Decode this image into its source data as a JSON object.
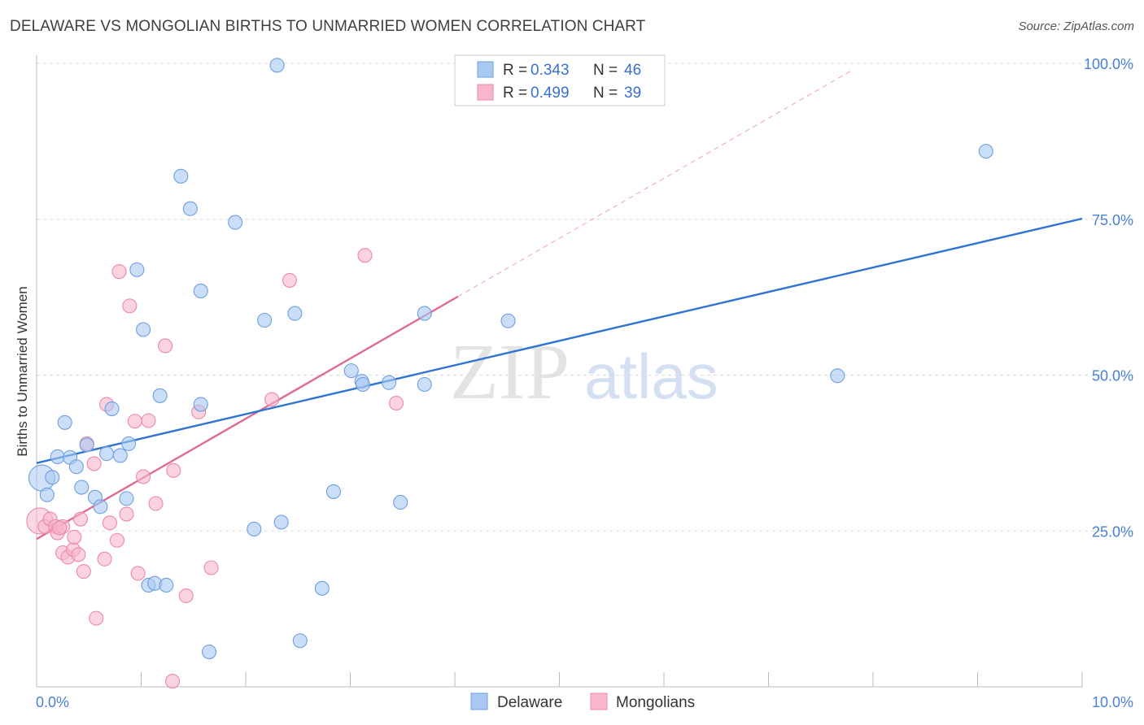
{
  "title": "DELAWARE VS MONGOLIAN BIRTHS TO UNMARRIED WOMEN CORRELATION CHART",
  "source": "Source: ZipAtlas.com",
  "watermark": {
    "zip": "ZIP",
    "atlas": "atlas"
  },
  "colors": {
    "delaware_fill": "#a9c8f2",
    "delaware_stroke": "#6f9fdf",
    "delaware_line": "#2f74d0",
    "mongolian_fill": "#f7b6c9",
    "mongolian_stroke": "#ea8aa8",
    "mongolian_line": "#e06a92",
    "grid": "#dddddd",
    "tick_text": "#4a7fd6"
  },
  "legend_top": {
    "rows": [
      {
        "series": "Delaware",
        "r_label": "R = ",
        "r_value": "0.343",
        "n_label": "N = ",
        "n_value": "46"
      },
      {
        "series": "Mongolians",
        "r_label": "R = ",
        "r_value": "0.499",
        "n_label": "N = ",
        "n_value": "39"
      }
    ]
  },
  "chart_data": {
    "type": "scatter",
    "title": "DELAWARE VS MONGOLIAN BIRTHS TO UNMARRIED WOMEN CORRELATION CHART",
    "xlabel": "",
    "ylabel": "Births to Unmarried Women",
    "xlim": [
      0,
      10
    ],
    "ylim": [
      0,
      100
    ],
    "x_tick_labels": [
      "0.0%",
      "10.0%"
    ],
    "y_tick_labels": [
      {
        "value": 100,
        "label": "100.0%"
      },
      {
        "value": 75,
        "label": "75.0%"
      },
      {
        "value": 50,
        "label": "50.0%"
      },
      {
        "value": 25,
        "label": "25.0%"
      }
    ],
    "grid": true,
    "legend": "bottom-center",
    "series": [
      {
        "name": "Delaware",
        "r": 0.343,
        "n": 46,
        "trend": {
          "x": [
            0,
            10
          ],
          "y": [
            35.9,
            75.1
          ]
        },
        "points": [
          {
            "x": 0.05,
            "y": 33.5,
            "big": true
          },
          {
            "x": 0.1,
            "y": 30.8
          },
          {
            "x": 0.15,
            "y": 33.6
          },
          {
            "x": 0.2,
            "y": 36.9
          },
          {
            "x": 0.27,
            "y": 42.4
          },
          {
            "x": 0.32,
            "y": 36.8
          },
          {
            "x": 0.38,
            "y": 35.3
          },
          {
            "x": 0.43,
            "y": 32.0
          },
          {
            "x": 0.48,
            "y": 38.8
          },
          {
            "x": 0.56,
            "y": 30.4
          },
          {
            "x": 0.61,
            "y": 28.9
          },
          {
            "x": 0.67,
            "y": 37.4
          },
          {
            "x": 0.72,
            "y": 44.6
          },
          {
            "x": 0.8,
            "y": 37.1
          },
          {
            "x": 0.86,
            "y": 30.2
          },
          {
            "x": 0.88,
            "y": 39.0
          },
          {
            "x": 0.96,
            "y": 66.9
          },
          {
            "x": 1.02,
            "y": 57.3
          },
          {
            "x": 1.07,
            "y": 16.3
          },
          {
            "x": 1.13,
            "y": 16.6
          },
          {
            "x": 1.18,
            "y": 46.7
          },
          {
            "x": 1.24,
            "y": 16.3
          },
          {
            "x": 1.38,
            "y": 81.9
          },
          {
            "x": 1.47,
            "y": 76.7
          },
          {
            "x": 1.57,
            "y": 63.5
          },
          {
            "x": 1.57,
            "y": 45.3
          },
          {
            "x": 1.65,
            "y": 5.6
          },
          {
            "x": 1.9,
            "y": 74.5
          },
          {
            "x": 2.08,
            "y": 25.3
          },
          {
            "x": 2.18,
            "y": 58.8
          },
          {
            "x": 2.3,
            "y": 99.7
          },
          {
            "x": 2.34,
            "y": 26.4
          },
          {
            "x": 2.47,
            "y": 59.9
          },
          {
            "x": 2.52,
            "y": 7.4
          },
          {
            "x": 2.73,
            "y": 15.8
          },
          {
            "x": 2.84,
            "y": 31.3
          },
          {
            "x": 3.01,
            "y": 50.7
          },
          {
            "x": 3.11,
            "y": 49.0
          },
          {
            "x": 3.12,
            "y": 48.5
          },
          {
            "x": 3.37,
            "y": 48.8
          },
          {
            "x": 3.48,
            "y": 29.6
          },
          {
            "x": 3.71,
            "y": 48.5
          },
          {
            "x": 3.71,
            "y": 59.9
          },
          {
            "x": 4.51,
            "y": 58.7
          },
          {
            "x": 7.66,
            "y": 49.9
          },
          {
            "x": 9.08,
            "y": 85.9
          }
        ]
      },
      {
        "name": "Mongolians",
        "r": 0.499,
        "n": 39,
        "trend": {
          "x": [
            0,
            4.03
          ],
          "y": [
            23.7,
            62.6
          ]
        },
        "trend_dashed": {
          "x": [
            4.03,
            7.81
          ],
          "y": [
            62.6,
            99.0
          ]
        },
        "points": [
          {
            "x": 0.03,
            "y": 26.6,
            "big": true
          },
          {
            "x": 0.08,
            "y": 25.7
          },
          {
            "x": 0.13,
            "y": 26.9
          },
          {
            "x": 0.18,
            "y": 25.7
          },
          {
            "x": 0.2,
            "y": 24.7
          },
          {
            "x": 0.25,
            "y": 25.7
          },
          {
            "x": 0.25,
            "y": 21.5
          },
          {
            "x": 0.3,
            "y": 20.8
          },
          {
            "x": 0.35,
            "y": 22.0
          },
          {
            "x": 0.36,
            "y": 24.0
          },
          {
            "x": 0.4,
            "y": 21.2
          },
          {
            "x": 0.42,
            "y": 26.9
          },
          {
            "x": 0.45,
            "y": 18.5
          },
          {
            "x": 0.48,
            "y": 39.0
          },
          {
            "x": 0.55,
            "y": 35.8
          },
          {
            "x": 0.57,
            "y": 11.0
          },
          {
            "x": 0.65,
            "y": 20.5
          },
          {
            "x": 0.67,
            "y": 45.3
          },
          {
            "x": 0.7,
            "y": 26.3
          },
          {
            "x": 0.77,
            "y": 23.5
          },
          {
            "x": 0.79,
            "y": 66.6
          },
          {
            "x": 0.86,
            "y": 27.7
          },
          {
            "x": 0.89,
            "y": 61.1
          },
          {
            "x": 0.94,
            "y": 42.6
          },
          {
            "x": 0.97,
            "y": 18.2
          },
          {
            "x": 1.02,
            "y": 33.7
          },
          {
            "x": 1.07,
            "y": 42.7
          },
          {
            "x": 1.14,
            "y": 29.4
          },
          {
            "x": 1.23,
            "y": 54.7
          },
          {
            "x": 1.3,
            "y": 0.9
          },
          {
            "x": 1.31,
            "y": 34.7
          },
          {
            "x": 1.43,
            "y": 14.6
          },
          {
            "x": 1.55,
            "y": 44.1
          },
          {
            "x": 1.67,
            "y": 19.1
          },
          {
            "x": 2.25,
            "y": 46.1
          },
          {
            "x": 2.42,
            "y": 65.2
          },
          {
            "x": 3.14,
            "y": 69.2
          },
          {
            "x": 3.44,
            "y": 45.5
          },
          {
            "x": 0.22,
            "y": 25.5
          }
        ]
      }
    ]
  }
}
